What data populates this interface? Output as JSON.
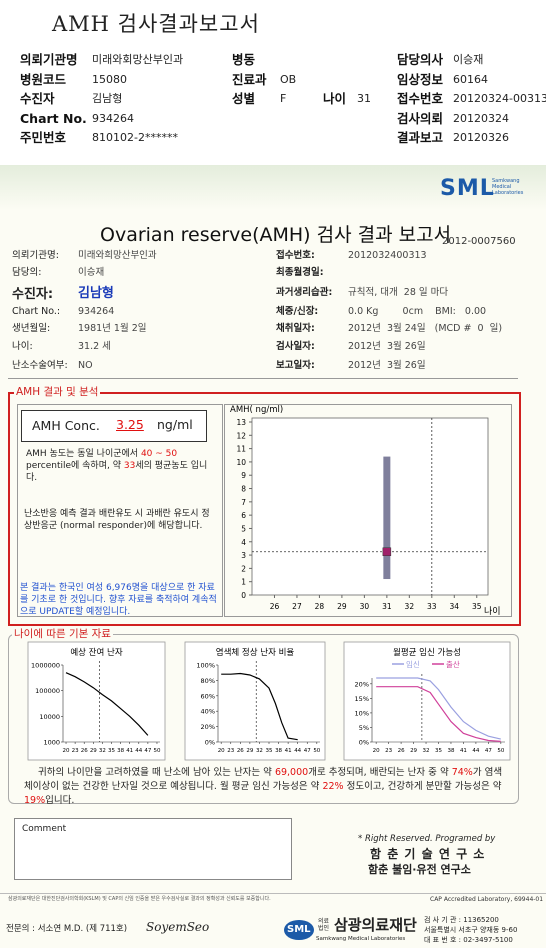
{
  "header": {
    "title": "AMH 검사결과보고서",
    "fields": [
      {
        "label": "의뢰기관명",
        "value": "미래와회망산부인과"
      },
      {
        "label": "병동"
      },
      {
        "label": "담당의사",
        "value": "이승재"
      },
      {
        "label": "병원코드",
        "value": "15080"
      },
      {
        "label": "진료과",
        "value": "OB"
      },
      {
        "label": "임상정보",
        "value": "60164"
      },
      {
        "label": "수진자",
        "value": "김남형"
      },
      {
        "label": "성별",
        "value": "F"
      },
      {
        "label": "나이",
        "value": "31"
      },
      {
        "label": "접수번호",
        "value": "20120324-00313"
      },
      {
        "label": "Chart No.",
        "value": "934264"
      },
      {
        "label": "검사의뢰",
        "value": "20120324"
      },
      {
        "label": "주민번호",
        "value": "810102-2******"
      },
      {
        "label": "결과보고",
        "value": "20120326"
      }
    ]
  },
  "report": {
    "logo": "SML",
    "logo_sub": "Samkwang Medical Laboratories",
    "title": "Ovarian reserve(AMH) 검사 결과 보고서",
    "number": "2012-0007560",
    "left_fields": [
      {
        "label": "의뢰기관명:",
        "value": "미래와희망산부인과"
      },
      {
        "label": "담당의:",
        "value": "이승재"
      },
      {
        "label": "수진자:",
        "value": "김남형"
      },
      {
        "label": "Chart No.:",
        "value": "934264"
      },
      {
        "label": "생년월일:",
        "value": "1981년 1월 2일"
      },
      {
        "label": "나이:",
        "value": "31.2 세"
      },
      {
        "label": "난소수술여부:",
        "value": "NO"
      }
    ],
    "right_fields": [
      {
        "label": "접수번호:",
        "value": "2012032400313"
      },
      {
        "label": "최종월경일:"
      },
      {
        "label": "과거생리습관:",
        "value": "규칙적, 대개  28 일 마다"
      },
      {
        "label": "체중/신장:",
        "value": "0.0 Kg        0cm    BMI:   0.00"
      },
      {
        "label": "채취일자:",
        "value": "2012년  3월 24일   (MCD #  0  일)"
      },
      {
        "label": "검사일자:",
        "value": "2012년  3월 26일"
      },
      {
        "label": "보고일자:",
        "value": "2012년  3월 26일"
      }
    ],
    "analysis": {
      "title": "AMH 결과 및 분석",
      "conc_label": "AMH Conc.",
      "conc_value": 3.25,
      "conc_unit": "ng/ml",
      "interpretation": [
        {
          "text": "AMH 농도는 동일 나이군에서 "
        },
        {
          "text": "40 ~ 50",
          "highlight": true
        },
        {
          "text": " percentile에 속하며, 약 "
        },
        {
          "text": "33",
          "highlight": true
        },
        {
          "text": "세의 평균농도 입니다."
        }
      ],
      "response": "난소반응 예측 결과 배란유도 시 과배란 유도시 정상반응군 (normal responder)에 해당합니다.",
      "note": "본 결과는 한국인 여성 6,976명을 대상으로 한 자료를 기초로 한 것입니다. 향후 자료를 축적하여 계속적으로 UPDATE할 예정입니다.",
      "chart": {
        "type": "range",
        "y_label": "AMH( ng/ml)",
        "x_label": "나이",
        "xlim": [
          25,
          35.5
        ],
        "xticks": [
          26,
          27,
          28,
          29,
          30,
          31,
          32,
          33,
          34,
          35
        ],
        "ylim": [
          0,
          13.3
        ],
        "yticks": [
          0,
          1,
          2,
          3,
          4,
          5,
          6,
          7,
          8,
          9,
          10,
          11,
          12,
          13
        ],
        "range": {
          "x": 31,
          "low": 1.2,
          "high": 10.4,
          "color": "#7f7f9c"
        },
        "point_color": "#a0206a",
        "reference_x": 33
      }
    },
    "age_data": {
      "title": "나이에 따른 기본 자료",
      "charts": [
        {
          "type": "line",
          "title": "예상 잔여 난자",
          "log_y": true,
          "ylim": [
            1000,
            1000000
          ],
          "yticks": [
            1000,
            10000,
            100000,
            1000000
          ],
          "xlim": [
            19,
            51
          ],
          "xticks": [
            20,
            23,
            26,
            29,
            32,
            35,
            38,
            41,
            44,
            47,
            50
          ],
          "reference_x": 31,
          "x": [
            20,
            23,
            26,
            29,
            32,
            35,
            38,
            41,
            44,
            47
          ],
          "series": [
            {
              "color": "#000000",
              "values": [
                500000,
                350000,
                220000,
                130000,
                70000,
                40000,
                20000,
                10000,
                4500,
                1800
              ]
            }
          ]
        },
        {
          "type": "line",
          "title": "염색체 정상 난자 비율",
          "ylim": [
            0,
            100
          ],
          "yticks": [
            {
              "value": 0,
              "label": "0%"
            },
            {
              "value": 20,
              "label": "20%"
            },
            {
              "value": 40,
              "label": "40%"
            },
            {
              "value": 60,
              "label": "60%"
            },
            {
              "value": 80,
              "label": "80%"
            },
            {
              "value": 100,
              "label": "100%"
            }
          ],
          "xlim": [
            19,
            51
          ],
          "xticks": [
            20,
            23,
            26,
            29,
            32,
            35,
            38,
            41,
            44,
            47,
            50
          ],
          "reference_x": 31,
          "x": [
            20,
            23,
            26,
            29,
            32,
            35,
            37,
            39,
            41,
            44
          ],
          "series": [
            {
              "color": "#000000",
              "values": [
                88,
                88,
                89,
                87,
                82,
                70,
                50,
                25,
                5,
                3
              ]
            }
          ]
        },
        {
          "type": "line",
          "title": "월평균 임신 가능성",
          "ylim": [
            0,
            22
          ],
          "yticks": [
            {
              "value": 0,
              "label": "0%"
            },
            {
              "value": 5,
              "label": "5%"
            },
            {
              "value": 10,
              "label": "10%"
            },
            {
              "value": 15,
              "label": "15%"
            },
            {
              "value": 20,
              "label": "20%"
            }
          ],
          "xlim": [
            19,
            51
          ],
          "xticks": [
            20,
            23,
            26,
            29,
            32,
            35,
            38,
            41,
            44,
            47,
            50
          ],
          "reference_x": 31,
          "x": [
            20,
            25,
            30,
            33,
            35,
            38,
            41,
            44,
            47,
            50
          ],
          "series": [
            {
              "name": "임신",
              "color": "#9aa0e0",
              "values": [
                22,
                22,
                22,
                21,
                18,
                12,
                7,
                4,
                2,
                1
              ]
            },
            {
              "name": "출산",
              "color": "#d0409a",
              "values": [
                19,
                19,
                19,
                17,
                13,
                7,
                3,
                1.5,
                0.5,
                0.2
              ]
            }
          ]
        }
      ],
      "summary": [
        {
          "text": "귀하의 나이만을 고려하였을 때 난소에 남아 있는 난자는 약 "
        },
        {
          "text": "69,000",
          "highlight": true
        },
        {
          "text": "개로 추정되며, 배란되는 난자 중 약 "
        },
        {
          "text": "74%",
          "highlight": true
        },
        {
          "text": "가 염색체이상이 없는 건강한 난자일 것으로 예상됩니다. 월 평균 임신 가능성은 약 "
        },
        {
          "text": "22%",
          "highlight": true
        },
        {
          "text": " 정도이고, 건강하게 분만할 가능성은 약 "
        },
        {
          "text": "19%",
          "highlight": true
        },
        {
          "text": "입니다."
        }
      ]
    },
    "comment": "Comment",
    "credits": [
      "* Right Reserved. Programed by",
      "함 춘 기 술 연 구 소",
      "함춘 불임·유전 연구소"
    ]
  },
  "footer": {
    "notice": "삼광의료재단은 대한진단검사의학회(KSLM) 및 CAP의 신임 인증을 받은 우수검사실로 결과의 정확성과 신뢰도를 보증합니다.",
    "cap": "CAP Accredited Laboratory, 69944-01",
    "doctor": "전문의 : 서소연 M.D. (제 711호)",
    "signature": "SoyemSeo",
    "org_prefix": "의료법인",
    "org": "삼광의료재단",
    "org_en": "Samkwang Medical Laboratories",
    "org_logo": "SML",
    "address": [
      "검 사 기 관 : 11365200",
      "서울특별시 서초구 양재동 9-60",
      "대 표 번 호 : 02-3497-5100"
    ]
  }
}
